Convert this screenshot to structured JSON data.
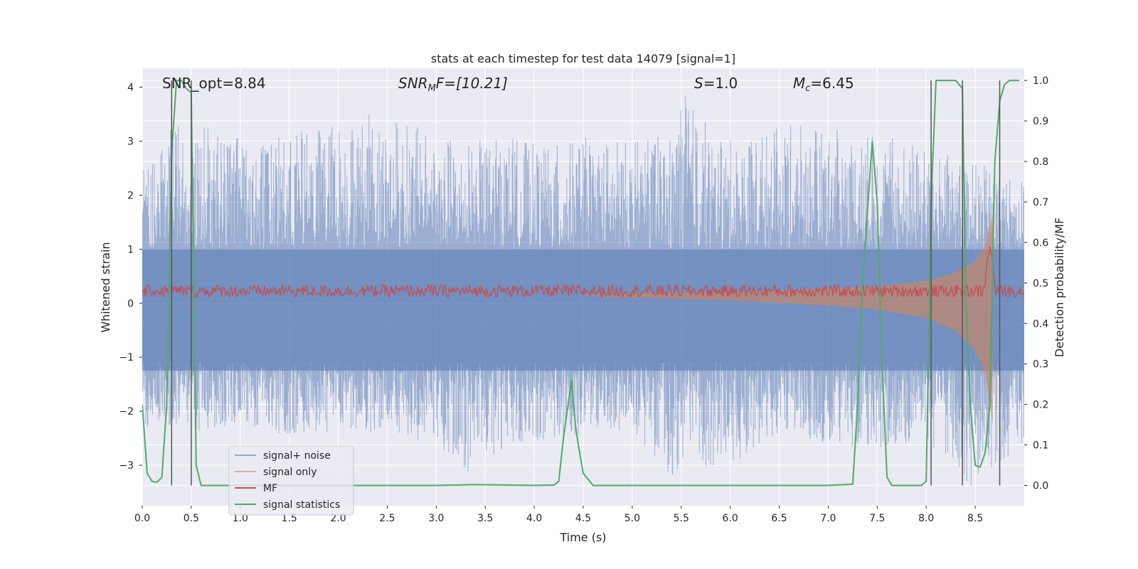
{
  "chart_data": {
    "type": "line",
    "title": "stats at each timestep for test data 14079 [signal=1]",
    "xlabel": "Time (s)",
    "ylabel_left": "Whitened strain",
    "ylabel_right": "Detection probability/MF",
    "xlim": [
      0.0,
      9.0
    ],
    "ylim_left": [
      -3.75,
      4.35
    ],
    "ylim_right": [
      -0.05,
      1.03
    ],
    "x_ticks": [
      0.0,
      0.5,
      1.0,
      1.5,
      2.0,
      2.5,
      3.0,
      3.5,
      4.0,
      4.5,
      5.0,
      5.5,
      6.0,
      6.5,
      7.0,
      7.5,
      8.0,
      8.5
    ],
    "x_tick_labels": [
      "0.0",
      "0.5",
      "1.0",
      "1.5",
      "2.0",
      "2.5",
      "3.0",
      "3.5",
      "4.0",
      "4.5",
      "5.0",
      "5.5",
      "6.0",
      "6.5",
      "7.0",
      "7.5",
      "8.0",
      "8.5"
    ],
    "y_left_ticks": [
      -3,
      -2,
      -1,
      0,
      1,
      2,
      3,
      4
    ],
    "y_left_tick_labels": [
      "−3",
      "−2",
      "−1",
      "0",
      "1",
      "2",
      "3",
      "4"
    ],
    "y_right_ticks": [
      0.0,
      0.1,
      0.2,
      0.3,
      0.4,
      0.5,
      0.6,
      0.7,
      0.8,
      0.9,
      1.0
    ],
    "y_right_tick_labels": [
      "0.0",
      "0.1",
      "0.2",
      "0.3",
      "0.4",
      "0.5",
      "0.6",
      "0.7",
      "0.8",
      "0.9",
      "1.0"
    ],
    "grid": true,
    "annotations": {
      "snr_opt": "SNR_opt=8.84",
      "snr_mf_italic": "SNR",
      "snr_mf_sub": "M",
      "snr_mf_rest": "F=[10.21]",
      "s_italic": "S",
      "s_rest": "=1.0",
      "mc_italic": "M",
      "mc_sub": "c",
      "mc_rest": "=6.45"
    },
    "legend": {
      "placement": "lower-left",
      "entries": [
        "signal+ noise",
        "signal only",
        "MF",
        "signal statistics"
      ]
    },
    "series": [
      {
        "name": "signal+ noise",
        "axis": "left",
        "style": "noise-band",
        "color": "#4c72b0",
        "band_peak_positive": [
          [
            0.05,
            2.5
          ],
          [
            0.3,
            3.6
          ],
          [
            0.5,
            3.4
          ],
          [
            0.9,
            3.1
          ],
          [
            1.3,
            3.0
          ],
          [
            1.7,
            3.3
          ],
          [
            2.2,
            3.5
          ],
          [
            2.5,
            3.55
          ],
          [
            2.9,
            3.2
          ],
          [
            3.3,
            3.0
          ],
          [
            3.8,
            3.1
          ],
          [
            4.1,
            2.9
          ],
          [
            4.6,
            3.1
          ],
          [
            5.0,
            3.0
          ],
          [
            5.45,
            3.2
          ],
          [
            5.5,
            4.0
          ],
          [
            5.9,
            3.0
          ],
          [
            6.6,
            3.3
          ],
          [
            7.2,
            3.2
          ],
          [
            7.7,
            3.1
          ],
          [
            8.3,
            2.7
          ],
          [
            8.7,
            2.5
          ],
          [
            8.95,
            2.3
          ]
        ],
        "band_peak_negative": [
          [
            0.05,
            -2.4
          ],
          [
            0.3,
            -2.3
          ],
          [
            0.6,
            -2.4
          ],
          [
            1.0,
            -2.2
          ],
          [
            1.5,
            -2.5
          ],
          [
            2.0,
            -2.4
          ],
          [
            2.5,
            -2.5
          ],
          [
            3.0,
            -2.6
          ],
          [
            3.3,
            -3.15
          ],
          [
            3.8,
            -2.6
          ],
          [
            4.3,
            -2.5
          ],
          [
            5.0,
            -2.4
          ],
          [
            5.5,
            -3.4
          ],
          [
            5.6,
            -3.1
          ],
          [
            6.0,
            -3.0
          ],
          [
            6.5,
            -2.4
          ],
          [
            7.0,
            -2.6
          ],
          [
            7.5,
            -2.7
          ],
          [
            8.0,
            -2.7
          ],
          [
            8.5,
            -3.45
          ],
          [
            8.7,
            -3.0
          ],
          [
            8.95,
            -2.8
          ]
        ]
      },
      {
        "name": "signal only",
        "axis": "right",
        "style": "chirp-envelope",
        "color": "#dd8452",
        "envelope": [
          [
            4.5,
            0.001
          ],
          [
            5.0,
            0.004
          ],
          [
            5.5,
            0.006
          ],
          [
            6.0,
            0.008
          ],
          [
            6.5,
            0.012
          ],
          [
            7.0,
            0.016
          ],
          [
            7.5,
            0.022
          ],
          [
            8.0,
            0.035
          ],
          [
            8.3,
            0.055
          ],
          [
            8.5,
            0.085
          ],
          [
            8.6,
            0.12
          ],
          [
            8.65,
            0.17
          ],
          [
            8.68,
            0.2
          ]
        ]
      },
      {
        "name": "MF",
        "axis": "right",
        "style": "noisy-line",
        "color": "#c44e52",
        "baseline": 0.48,
        "amplitude": 0.015,
        "peak": [
          8.65,
          0.6
        ]
      },
      {
        "name": "signal statistics",
        "axis": "right",
        "style": "line",
        "color": "#55a868",
        "x": [
          0.0,
          0.05,
          0.1,
          0.15,
          0.2,
          0.25,
          0.3,
          0.35,
          0.4,
          0.45,
          0.5,
          0.55,
          0.6,
          0.65,
          0.7,
          1.0,
          2.0,
          3.0,
          3.4,
          4.0,
          4.2,
          4.25,
          4.3,
          4.38,
          4.42,
          4.45,
          4.5,
          4.6,
          5.0,
          6.0,
          7.0,
          7.25,
          7.3,
          7.35,
          7.45,
          7.5,
          7.55,
          7.6,
          7.65,
          7.75,
          7.95,
          8.0,
          8.05,
          8.1,
          8.15,
          8.3,
          8.37,
          8.4,
          8.45,
          8.5,
          8.55,
          8.6,
          8.65,
          8.7,
          8.75,
          8.8,
          8.85,
          8.95
        ],
        "y": [
          0.2,
          0.03,
          0.01,
          0.008,
          0.02,
          0.2,
          0.82,
          1.0,
          1.0,
          0.98,
          0.97,
          0.05,
          0.0,
          0.0,
          0.0,
          0.0,
          0.0,
          0.0,
          0.002,
          0.0,
          0.001,
          0.01,
          0.12,
          0.26,
          0.15,
          0.1,
          0.03,
          0.0,
          0.0,
          0.0,
          0.0,
          0.003,
          0.2,
          0.5,
          0.85,
          0.7,
          0.3,
          0.02,
          0.0,
          0.0,
          0.0,
          0.01,
          0.7,
          1.0,
          1.0,
          1.0,
          0.98,
          0.5,
          0.2,
          0.05,
          0.045,
          0.08,
          0.2,
          0.8,
          0.95,
          0.99,
          1.0,
          1.0
        ]
      }
    ],
    "vertical_lines": [
      0.3,
      0.5,
      8.05,
      8.37,
      8.75
    ]
  }
}
